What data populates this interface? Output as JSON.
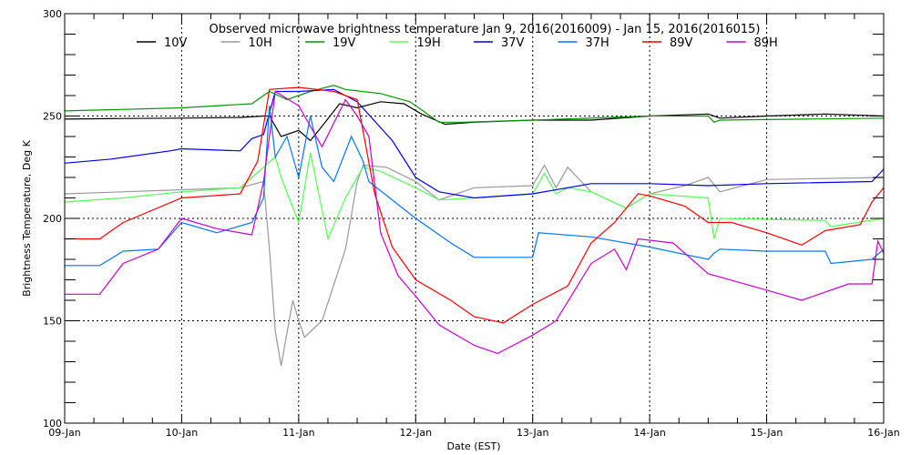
{
  "chart_data": {
    "type": "line",
    "title": "Observed microwave brightness temperature Jan  9, 2016(2016009) - Jan 15, 2016(2016015)",
    "xlabel": "Date (EST)",
    "ylabel": "Brightness Temperature, Deg K",
    "xlim": [
      0,
      7
    ],
    "ylim": [
      100,
      300
    ],
    "x_units": "days since 09-Jan 00:00",
    "x_ticks": [
      "09-Jan",
      "10-Jan",
      "11-Jan",
      "12-Jan",
      "13-Jan",
      "14-Jan",
      "15-Jan",
      "16-Jan"
    ],
    "y_ticks": [
      "100",
      "150",
      "200",
      "250",
      "300"
    ],
    "grid": "dotted",
    "legend_position": "top",
    "series": [
      {
        "name": "10V",
        "color": "#000000",
        "points": [
          [
            0,
            248.5
          ],
          [
            0.5,
            248.8
          ],
          [
            1,
            249
          ],
          [
            1.5,
            249.3
          ],
          [
            1.7,
            250
          ],
          [
            1.75,
            250
          ],
          [
            1.85,
            240
          ],
          [
            2.0,
            243
          ],
          [
            2.1,
            238
          ],
          [
            2.2,
            245
          ],
          [
            2.35,
            256
          ],
          [
            2.5,
            254
          ],
          [
            2.7,
            257
          ],
          [
            2.9,
            256
          ],
          [
            3.05,
            251
          ],
          [
            3.25,
            246
          ],
          [
            3.5,
            247
          ],
          [
            4,
            248
          ],
          [
            4.5,
            248
          ],
          [
            5,
            250
          ],
          [
            5.5,
            251
          ],
          [
            5.6,
            249
          ],
          [
            6,
            250
          ],
          [
            6.5,
            251
          ],
          [
            7,
            250
          ]
        ]
      },
      {
        "name": "10H",
        "color": "#999999",
        "points": [
          [
            0,
            212
          ],
          [
            0.5,
            213
          ],
          [
            1,
            214
          ],
          [
            1.5,
            215
          ],
          [
            1.7,
            218
          ],
          [
            1.75,
            185
          ],
          [
            1.8,
            145
          ],
          [
            1.85,
            128
          ],
          [
            1.95,
            160
          ],
          [
            2.0,
            150
          ],
          [
            2.05,
            142
          ],
          [
            2.2,
            150
          ],
          [
            2.4,
            185
          ],
          [
            2.5,
            218
          ],
          [
            2.55,
            226
          ],
          [
            2.75,
            225
          ],
          [
            3.0,
            218
          ],
          [
            3.2,
            209
          ],
          [
            3.5,
            215
          ],
          [
            4,
            216
          ],
          [
            4.1,
            226
          ],
          [
            4.2,
            215
          ],
          [
            4.3,
            225
          ],
          [
            4.5,
            213
          ],
          [
            4.8,
            205
          ],
          [
            5.0,
            212
          ],
          [
            5.3,
            216
          ],
          [
            5.5,
            220
          ],
          [
            5.6,
            213
          ],
          [
            6,
            219
          ],
          [
            7,
            220
          ]
        ]
      },
      {
        "name": "19V",
        "color": "#009900",
        "points": [
          [
            0,
            252.5
          ],
          [
            1,
            254
          ],
          [
            1.6,
            256
          ],
          [
            1.75,
            262
          ],
          [
            1.9,
            258
          ],
          [
            2.1,
            262
          ],
          [
            2.3,
            265
          ],
          [
            2.4,
            263
          ],
          [
            2.7,
            261
          ],
          [
            2.95,
            257
          ],
          [
            3.1,
            251
          ],
          [
            3.2,
            247
          ],
          [
            3.4,
            247
          ],
          [
            4,
            248
          ],
          [
            5,
            250
          ],
          [
            5.5,
            250
          ],
          [
            5.55,
            247
          ],
          [
            5.6,
            248
          ],
          [
            7,
            249
          ]
        ]
      },
      {
        "name": "19H",
        "color": "#55ff55",
        "points": [
          [
            0,
            208
          ],
          [
            0.5,
            210
          ],
          [
            1,
            213
          ],
          [
            1.5,
            215
          ],
          [
            1.6,
            220
          ],
          [
            1.8,
            230
          ],
          [
            1.85,
            220
          ],
          [
            2.0,
            198
          ],
          [
            2.1,
            232
          ],
          [
            2.25,
            190
          ],
          [
            2.4,
            210
          ],
          [
            2.55,
            225
          ],
          [
            2.7,
            223
          ],
          [
            3.0,
            215
          ],
          [
            3.2,
            209
          ],
          [
            3.5,
            210
          ],
          [
            4,
            212
          ],
          [
            4.1,
            222
          ],
          [
            4.2,
            212
          ],
          [
            4.3,
            215
          ],
          [
            4.5,
            213
          ],
          [
            4.8,
            205
          ],
          [
            5.0,
            212
          ],
          [
            5.5,
            210
          ],
          [
            5.55,
            190
          ],
          [
            5.6,
            200
          ],
          [
            6.5,
            199
          ],
          [
            6.55,
            196
          ],
          [
            7,
            200
          ]
        ]
      },
      {
        "name": "37V",
        "color": "#0000ee",
        "points": [
          [
            0,
            227
          ],
          [
            0.4,
            229
          ],
          [
            0.9,
            233
          ],
          [
            1.0,
            234
          ],
          [
            1.5,
            233
          ],
          [
            1.6,
            239
          ],
          [
            1.7,
            241
          ],
          [
            1.8,
            262
          ],
          [
            2.0,
            262
          ],
          [
            2.3,
            263
          ],
          [
            2.5,
            257
          ],
          [
            2.8,
            238
          ],
          [
            3.0,
            220
          ],
          [
            3.2,
            213
          ],
          [
            3.5,
            210
          ],
          [
            4,
            212
          ],
          [
            4.5,
            217
          ],
          [
            5,
            217
          ],
          [
            5.5,
            216
          ],
          [
            6,
            217
          ],
          [
            6.9,
            218
          ],
          [
            7,
            224
          ]
        ]
      },
      {
        "name": "37H",
        "color": "#0077ff",
        "points": [
          [
            0,
            177
          ],
          [
            0.3,
            177
          ],
          [
            0.5,
            184
          ],
          [
            0.8,
            185
          ],
          [
            1.0,
            198
          ],
          [
            1.3,
            193
          ],
          [
            1.6,
            198
          ],
          [
            1.7,
            210
          ],
          [
            1.75,
            255
          ],
          [
            1.8,
            230
          ],
          [
            1.9,
            240
          ],
          [
            2.0,
            220
          ],
          [
            2.1,
            250
          ],
          [
            2.2,
            225
          ],
          [
            2.3,
            218
          ],
          [
            2.45,
            240
          ],
          [
            2.55,
            228
          ],
          [
            2.6,
            218
          ],
          [
            3.0,
            200
          ],
          [
            3.3,
            188
          ],
          [
            3.5,
            181
          ],
          [
            4.0,
            181
          ],
          [
            4.05,
            193
          ],
          [
            4.5,
            191
          ],
          [
            5.0,
            186
          ],
          [
            5.5,
            180
          ],
          [
            5.55,
            183
          ],
          [
            5.6,
            185
          ],
          [
            6,
            184
          ],
          [
            6.5,
            184
          ],
          [
            6.55,
            178
          ],
          [
            6.9,
            180
          ],
          [
            7,
            185
          ]
        ]
      },
      {
        "name": "89V",
        "color": "#ff0000",
        "points": [
          [
            0,
            190
          ],
          [
            0.3,
            190
          ],
          [
            0.5,
            198
          ],
          [
            1.0,
            210
          ],
          [
            1.5,
            212
          ],
          [
            1.65,
            228
          ],
          [
            1.75,
            263
          ],
          [
            2.0,
            264
          ],
          [
            2.3,
            262
          ],
          [
            2.5,
            258
          ],
          [
            2.65,
            212
          ],
          [
            2.8,
            186
          ],
          [
            3.0,
            170
          ],
          [
            3.3,
            160
          ],
          [
            3.5,
            152
          ],
          [
            3.75,
            149
          ],
          [
            4.0,
            158
          ],
          [
            4.3,
            167
          ],
          [
            4.5,
            188
          ],
          [
            4.7,
            198
          ],
          [
            4.9,
            212
          ],
          [
            5.0,
            211
          ],
          [
            5.3,
            206
          ],
          [
            5.5,
            198
          ],
          [
            5.7,
            198
          ],
          [
            6.0,
            193
          ],
          [
            6.3,
            187
          ],
          [
            6.5,
            194
          ],
          [
            6.8,
            197
          ],
          [
            6.9,
            208
          ],
          [
            7,
            215
          ]
        ]
      },
      {
        "name": "89H",
        "color": "#cc00cc",
        "points": [
          [
            0,
            163
          ],
          [
            0.3,
            163
          ],
          [
            0.5,
            178
          ],
          [
            0.8,
            185
          ],
          [
            1.0,
            200
          ],
          [
            1.3,
            195
          ],
          [
            1.6,
            192
          ],
          [
            1.7,
            218
          ],
          [
            1.8,
            262
          ],
          [
            2.0,
            255
          ],
          [
            2.2,
            235
          ],
          [
            2.4,
            258
          ],
          [
            2.5,
            250
          ],
          [
            2.6,
            240
          ],
          [
            2.7,
            193
          ],
          [
            2.85,
            172
          ],
          [
            3.0,
            162
          ],
          [
            3.2,
            148
          ],
          [
            3.5,
            138
          ],
          [
            3.7,
            134
          ],
          [
            4.0,
            143
          ],
          [
            4.2,
            150
          ],
          [
            4.5,
            178
          ],
          [
            4.7,
            185
          ],
          [
            4.8,
            175
          ],
          [
            4.9,
            190
          ],
          [
            5.2,
            188
          ],
          [
            5.5,
            173
          ],
          [
            6.0,
            165
          ],
          [
            6.3,
            160
          ],
          [
            6.7,
            168
          ],
          [
            6.9,
            168
          ],
          [
            6.95,
            189
          ],
          [
            7,
            183
          ]
        ]
      }
    ]
  }
}
